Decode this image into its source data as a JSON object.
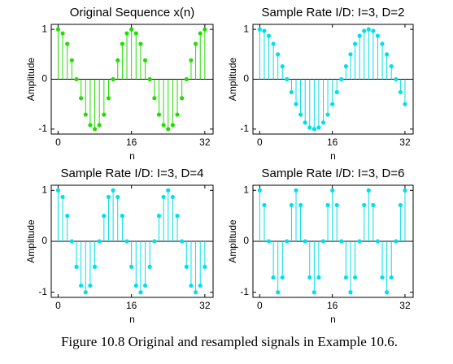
{
  "chart_data": [
    {
      "type": "stem",
      "title": "Original Sequence x(n)",
      "xlabel": "n",
      "ylabel": "Amplitude",
      "color": "#22dd00",
      "x": [
        0,
        1,
        2,
        3,
        4,
        5,
        6,
        7,
        8,
        9,
        10,
        11,
        12,
        13,
        14,
        15,
        16,
        17,
        18,
        19,
        20,
        21,
        22,
        23,
        24,
        25,
        26,
        27,
        28,
        29,
        30,
        31,
        32
      ],
      "values": [
        1,
        0.92,
        0.71,
        0.38,
        0,
        -0.38,
        -0.71,
        -0.92,
        -1,
        -0.92,
        -0.71,
        -0.38,
        0,
        0.38,
        0.71,
        0.92,
        1,
        0.92,
        0.71,
        0.38,
        0,
        -0.38,
        -0.71,
        -0.92,
        -1,
        -0.92,
        -0.71,
        -0.38,
        0,
        0.38,
        0.71,
        0.92,
        1
      ],
      "xlim": [
        -1.5,
        33.8
      ],
      "ylim": [
        -1.1,
        1.1
      ],
      "xticks": [
        0,
        16,
        32
      ],
      "yticks": [
        -1,
        0,
        1
      ]
    },
    {
      "type": "stem",
      "title": "Sample Rate I/D: I=3, D=2",
      "xlabel": "n",
      "ylabel": "Amplitude",
      "color": "#00e0e8",
      "x": [
        0,
        1,
        2,
        3,
        4,
        5,
        6,
        7,
        8,
        9,
        10,
        11,
        12,
        13,
        14,
        15,
        16,
        17,
        18,
        19,
        20,
        21,
        22,
        23,
        24,
        25,
        26,
        27,
        28,
        29,
        30,
        31,
        32
      ],
      "values": [
        1,
        0.97,
        0.87,
        0.71,
        0.5,
        0.26,
        0,
        -0.26,
        -0.5,
        -0.71,
        -0.87,
        -0.97,
        -1,
        -0.97,
        -0.87,
        -0.71,
        -0.5,
        -0.26,
        0,
        0.26,
        0.5,
        0.71,
        0.87,
        0.97,
        1,
        0.97,
        0.87,
        0.71,
        0.5,
        0.26,
        0,
        -0.26,
        -0.5
      ],
      "xlim": [
        -1.5,
        33.8
      ],
      "ylim": [
        -1.1,
        1.1
      ],
      "xticks": [
        0,
        16,
        32
      ],
      "yticks": [
        -1,
        0,
        1
      ]
    },
    {
      "type": "stem",
      "title": "Sample Rate I/D: I=3, D=4",
      "xlabel": "n",
      "ylabel": "Amplitude",
      "color": "#00e0e8",
      "x": [
        0,
        1,
        2,
        3,
        4,
        5,
        6,
        7,
        8,
        9,
        10,
        11,
        12,
        13,
        14,
        15,
        16,
        17,
        18,
        19,
        20,
        21,
        22,
        23,
        24,
        25,
        26,
        27,
        28,
        29,
        30,
        31,
        32
      ],
      "values": [
        1,
        0.87,
        0.5,
        0,
        -0.5,
        -0.87,
        -1,
        -0.87,
        -0.5,
        0,
        0.5,
        0.87,
        1,
        0.87,
        0.5,
        0,
        -0.5,
        -0.87,
        -1,
        -0.87,
        -0.5,
        0,
        0.5,
        0.87,
        1,
        0.87,
        0.5,
        0,
        -0.5,
        -0.87,
        -1,
        -0.87,
        -0.5
      ],
      "xlim": [
        -1.5,
        33.8
      ],
      "ylim": [
        -1.1,
        1.1
      ],
      "xticks": [
        0,
        16,
        32
      ],
      "yticks": [
        -1,
        0,
        1
      ]
    },
    {
      "type": "stem",
      "title": "Sample Rate I/D: I=3, D=6",
      "xlabel": "n",
      "ylabel": "Amplitude",
      "color": "#00e0e8",
      "x": [
        0,
        1,
        2,
        3,
        4,
        5,
        6,
        7,
        8,
        9,
        10,
        11,
        12,
        13,
        14,
        15,
        16,
        17,
        18,
        19,
        20,
        21,
        22,
        23,
        24,
        25,
        26,
        27,
        28,
        29,
        30,
        31,
        32
      ],
      "values": [
        1,
        0.71,
        0,
        -0.71,
        -1,
        -0.71,
        0,
        0.71,
        1,
        0.71,
        0,
        -0.71,
        -1,
        -0.71,
        0,
        0.71,
        1,
        0.71,
        0,
        -0.71,
        -1,
        -0.71,
        0,
        0.71,
        1,
        0.71,
        0,
        -0.71,
        -1,
        -0.71,
        0,
        0.71,
        1
      ],
      "xlim": [
        -1.5,
        33.8
      ],
      "ylim": [
        -1.1,
        1.1
      ],
      "xticks": [
        0,
        16,
        32
      ],
      "yticks": [
        -1,
        0,
        1
      ]
    }
  ],
  "caption": "Figure 10.8 Original and resampled signals in Example 10.6."
}
